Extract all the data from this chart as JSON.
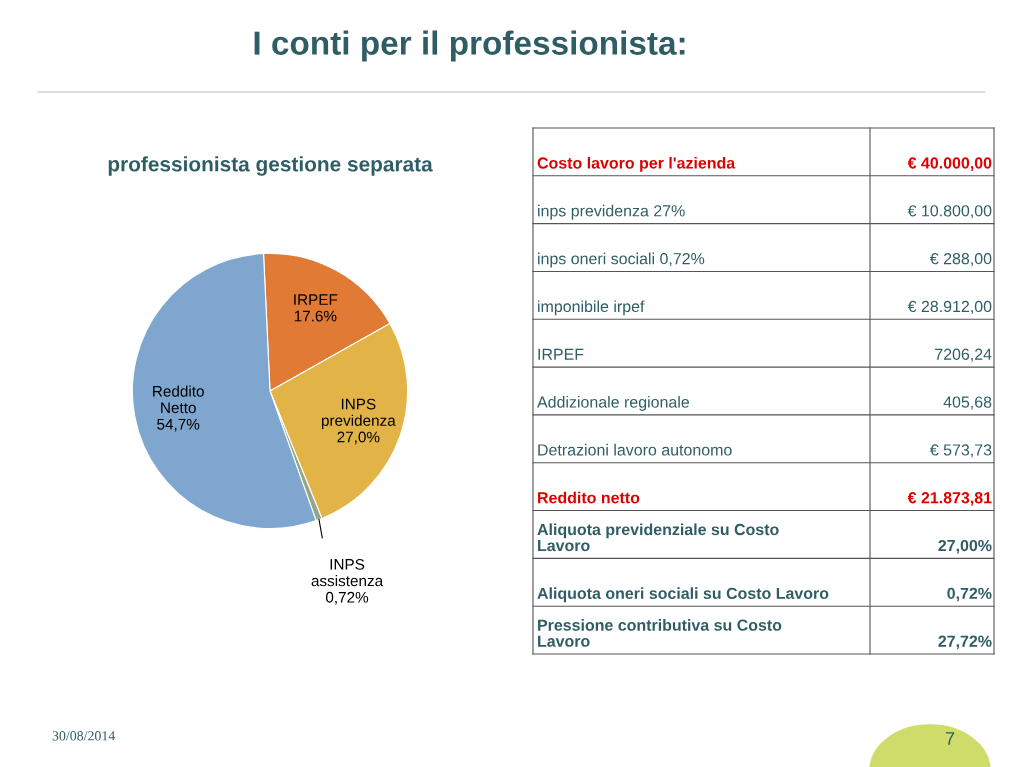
{
  "chart_data": [
    {
      "type": "pie",
      "title": "professionista gestione separata",
      "categories": [
        "IRPEF",
        "INPS\nprevidenza",
        "INPS\nassistenza",
        "Reddito\nNetto"
      ],
      "values": [
        17.6,
        27.0,
        0.72,
        54.7
      ],
      "value_labels": [
        "17.6%",
        "27,0%",
        "0,72%",
        "54,7%"
      ],
      "colors": [
        "#e07a35",
        "#e2b447",
        "#93a58c",
        "#7ea6cf"
      ],
      "annotations": [
        "I conti per il professionista:",
        "30/08/2014",
        "7"
      ]
    },
    {
      "type": "other",
      "annotations": [
        "Costo lavoro per l'azienda",
        "€ 40.000,00",
        "inps previdenza 27%",
        "€ 10.800,00",
        "inps oneri sociali 0,72%",
        "€ 288,00",
        "imponibile irpef",
        "€ 28.912,00",
        "IRPEF",
        "7206,24",
        "Addizionale regionale",
        "405,68",
        "Detrazioni lavoro autonomo",
        "€ 573,73",
        "Reddito netto",
        "€ 21.873,81",
        "Aliquota previdenziale su Costo\nLavoro",
        "27,00%",
        "Aliquota oneri sociali su Costo Lavoro",
        "0,72%",
        "Pressione contributiva su Costo\nLavoro",
        "27,72%"
      ]
    }
  ]
}
